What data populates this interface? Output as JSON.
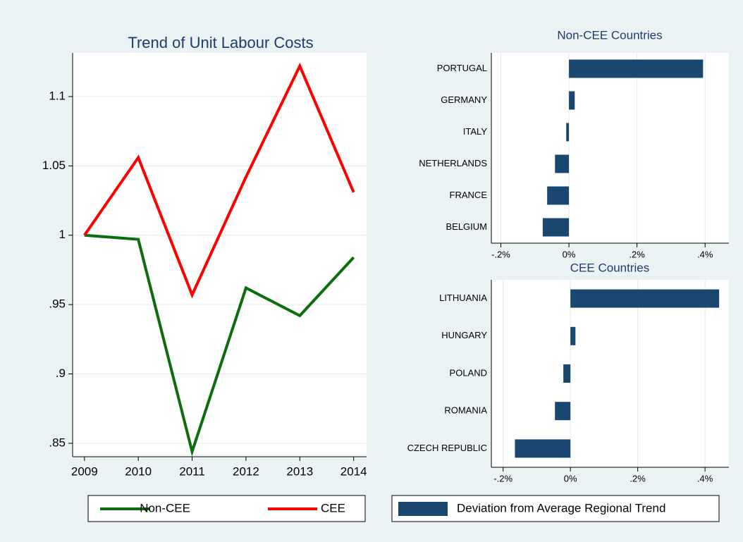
{
  "chart_data": [
    {
      "type": "line",
      "title": "Trend of Unit Labour Costs",
      "x": [
        2009,
        2010,
        2011,
        2012,
        2013,
        2014
      ],
      "series": [
        {
          "name": "Non-CEE",
          "color": "#0b6d0b",
          "values": [
            1,
            0.997,
            0.844,
            0.962,
            0.942,
            0.984
          ]
        },
        {
          "name": "CEE",
          "color": "#ff0000",
          "values": [
            1,
            1.056,
            0.957,
            1.042,
            1.122,
            1.031
          ]
        }
      ],
      "xlim": [
        2008.78,
        2014.24
      ],
      "xticks": [
        2009,
        2010,
        2011,
        2012,
        2013,
        2014
      ],
      "ylim": [
        0.8403,
        1.1315
      ],
      "yticks": [
        {
          "value": 0.85,
          "label": ".85"
        },
        {
          "value": 0.9,
          "label": ".9"
        },
        {
          "value": 0.95,
          "label": ".95"
        },
        1,
        1.05,
        1.1
      ],
      "grid": true
    },
    {
      "type": "hbar",
      "title": "Non-CEE Countries",
      "categories": [
        "PORTUGAL",
        "GERMANY",
        "ITALY",
        "NETHERLANDS",
        "FRANCE",
        "BELGIUM"
      ],
      "series": [
        {
          "name": "Deviation from Average Regional Trend",
          "color": "#1a476f",
          "values": [
            0.394,
            0.017,
            -0.008,
            -0.041,
            -0.064,
            -0.077
          ]
        }
      ],
      "xlim": [
        -0.228,
        0.47
      ],
      "xticks": [
        {
          "value": -0.2,
          "label": "-.2%"
        },
        {
          "value": 0,
          "label": "0%"
        },
        {
          "value": 0.2,
          "label": ".2%"
        },
        {
          "value": 0.4,
          "label": ".4%"
        }
      ],
      "grid": true
    },
    {
      "type": "hbar",
      "title": "CEE Countries",
      "categories": [
        "LITHUANIA",
        "HUNGARY",
        "POLAND",
        "ROMANIA",
        "CZECH REPUBLIC"
      ],
      "values": [
        0.442,
        0.015,
        -0.021,
        -0.046,
        -0.165
      ],
      "color": "#1a476f",
      "xlim": [
        -0.235,
        0.471
      ],
      "xticks": [
        {
          "value": -0.2,
          "label": "-.2%"
        },
        {
          "value": 0,
          "label": "0%"
        },
        {
          "value": 0.2,
          "label": ".2%"
        },
        {
          "value": 0.4,
          "label": ".4%"
        }
      ],
      "grid": true
    }
  ]
}
